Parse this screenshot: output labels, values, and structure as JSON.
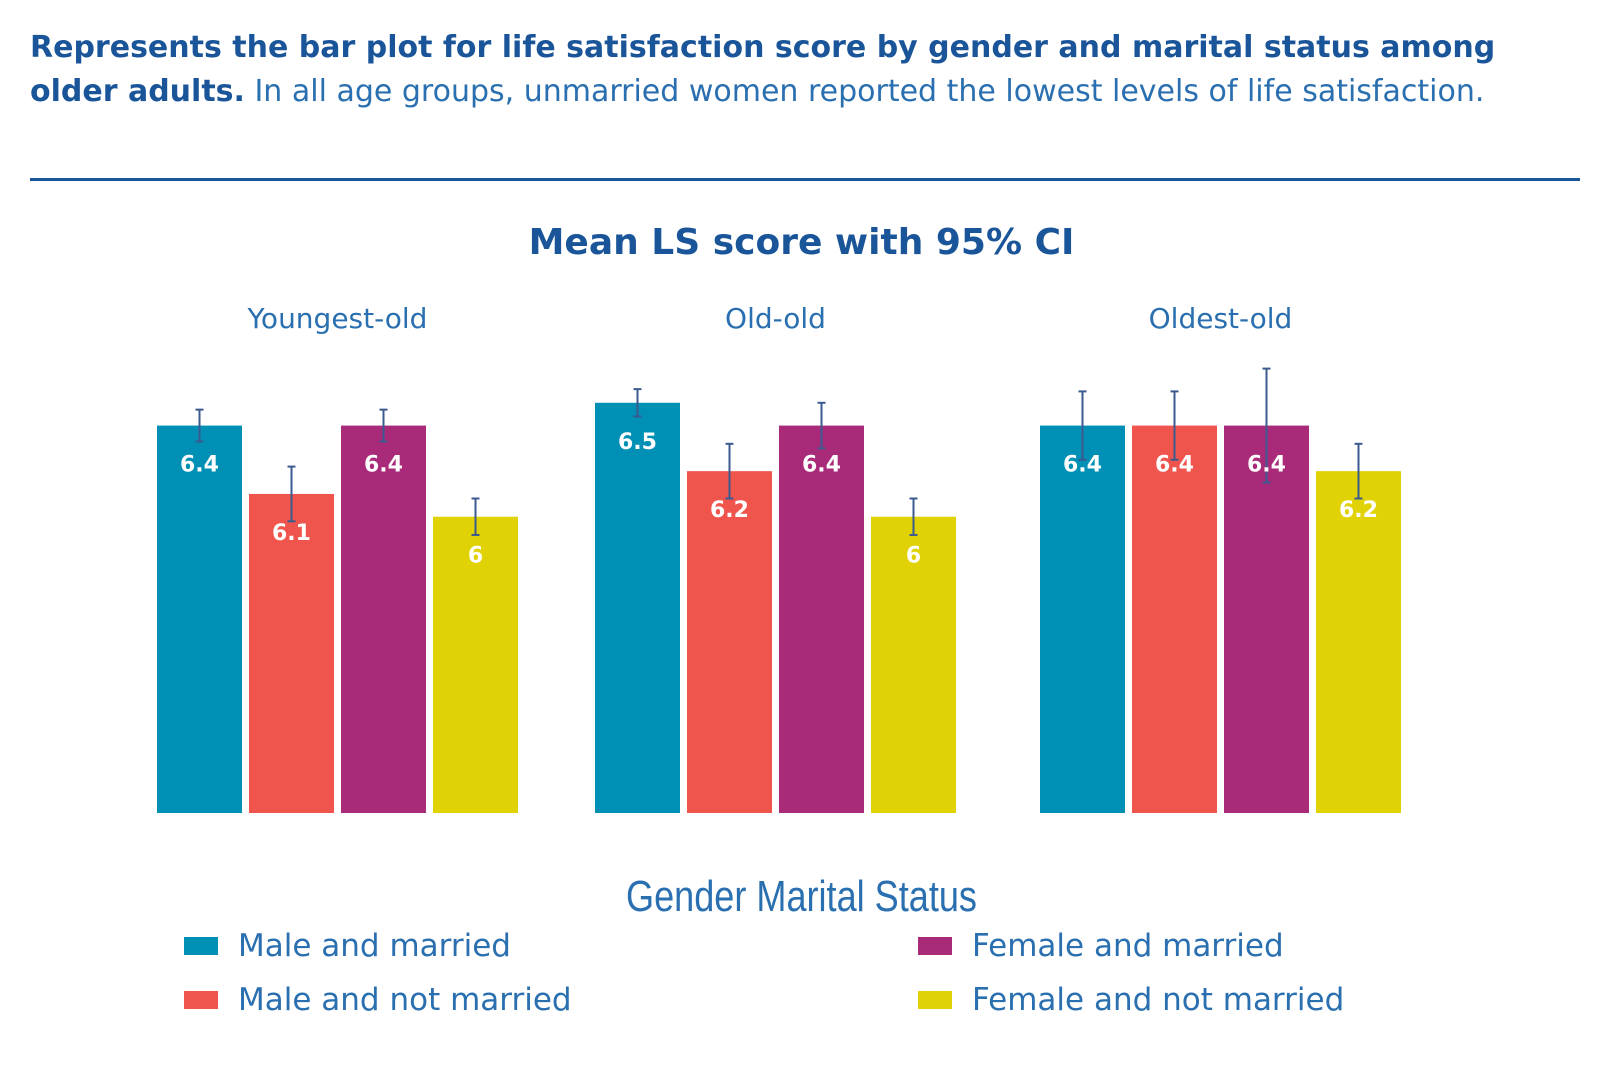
{
  "caption": {
    "bold": "Represents the bar plot for life satisfaction score by gender and marital status among older adults.",
    "rest": " In all age groups, unmarried women reported the lowest levels of life satisfaction."
  },
  "colors": {
    "male_married": "#0090b5",
    "male_not_married": "#f0554d",
    "female_married": "#a82a78",
    "female_not_married": "#e0d205",
    "text_blue": "#1a5599",
    "error_bar": "#3b5a8f"
  },
  "chart_data": {
    "type": "bar",
    "title": "Mean LS score with 95% CI",
    "legend_title": "Gender Marital Status",
    "legend_position": "bottom",
    "grid": false,
    "ylim": [
      0,
      6.6
    ],
    "panels": [
      {
        "label": "Youngest-old",
        "values": [
          6.4,
          6.1,
          6.4,
          6.0
        ],
        "value_labels": [
          "6.4",
          "6.1",
          "6.4",
          "6"
        ],
        "ci": [
          0.07,
          0.12,
          0.07,
          0.08
        ]
      },
      {
        "label": "Old-old",
        "values": [
          6.5,
          6.2,
          6.4,
          6.0
        ],
        "value_labels": [
          "6.5",
          "6.2",
          "6.4",
          "6"
        ],
        "ci": [
          0.06,
          0.12,
          0.1,
          0.08
        ]
      },
      {
        "label": "Oldest-old",
        "values": [
          6.4,
          6.4,
          6.4,
          6.2
        ],
        "value_labels": [
          "6.4",
          "6.4",
          "6.4",
          "6.2"
        ],
        "ci": [
          0.15,
          0.15,
          0.25,
          0.12
        ]
      }
    ],
    "series": [
      {
        "name": "Male and married",
        "color_key": "male_married"
      },
      {
        "name": "Male and not married",
        "color_key": "male_not_married"
      },
      {
        "name": "Female and married",
        "color_key": "female_married"
      },
      {
        "name": "Female and not married",
        "color_key": "female_not_married"
      }
    ]
  }
}
